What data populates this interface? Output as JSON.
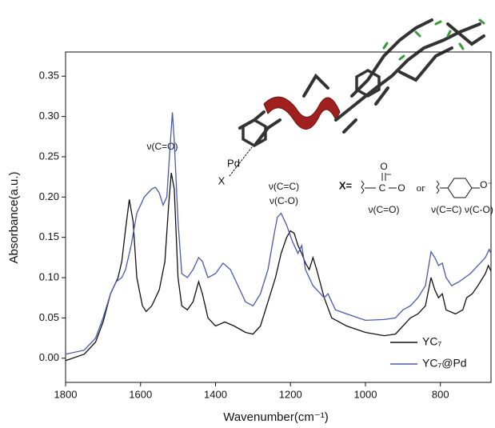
{
  "chart_data": {
    "type": "line",
    "x_label": "Wavenumber(cm⁻¹)",
    "y_label": "Absorbance(a.u.)",
    "xlim": [
      1800,
      665
    ],
    "ylim": [
      -0.03,
      0.38
    ],
    "xticks": [
      1800,
      1600,
      1400,
      1200,
      1000,
      800
    ],
    "yticks": [
      {
        "value": 0,
        "label": "0.00"
      },
      0.05,
      {
        "value": 0.1,
        "label": "0.10"
      },
      0.15,
      {
        "value": 0.2,
        "label": "0.20"
      },
      0.25,
      {
        "value": 0.3,
        "label": "0.30"
      },
      0.35
    ],
    "legend": "lower right",
    "series": [
      {
        "name": "YC₇",
        "color": "#111111",
        "x": [
          1800,
          1750,
          1720,
          1700,
          1680,
          1660,
          1650,
          1640,
          1630,
          1620,
          1610,
          1595,
          1585,
          1570,
          1550,
          1535,
          1525,
          1518,
          1510,
          1500,
          1490,
          1475,
          1460,
          1445,
          1435,
          1420,
          1400,
          1375,
          1350,
          1320,
          1300,
          1280,
          1260,
          1240,
          1225,
          1210,
          1200,
          1190,
          1180,
          1170,
          1160,
          1150,
          1140,
          1130,
          1110,
          1090,
          1050,
          1000,
          950,
          920,
          900,
          880,
          860,
          840,
          825,
          815,
          805,
          795,
          785,
          760,
          740,
          730,
          715,
          700,
          680,
          672,
          665
        ],
        "values": [
          -0.003,
          0.005,
          0.02,
          0.045,
          0.08,
          0.1,
          0.12,
          0.16,
          0.197,
          0.17,
          0.1,
          0.065,
          0.058,
          0.065,
          0.085,
          0.12,
          0.19,
          0.23,
          0.21,
          0.1,
          0.065,
          0.06,
          0.07,
          0.095,
          0.08,
          0.05,
          0.04,
          0.045,
          0.04,
          0.032,
          0.03,
          0.04,
          0.07,
          0.1,
          0.13,
          0.15,
          0.158,
          0.155,
          0.14,
          0.13,
          0.118,
          0.11,
          0.125,
          0.11,
          0.075,
          0.05,
          0.04,
          0.032,
          0.028,
          0.03,
          0.04,
          0.05,
          0.055,
          0.065,
          0.1,
          0.085,
          0.075,
          0.08,
          0.06,
          0.055,
          0.06,
          0.075,
          0.08,
          0.09,
          0.105,
          0.115,
          0.108
        ]
      },
      {
        "name": "YC₇@Pd",
        "color": "#4a5aaa",
        "x": [
          1800,
          1750,
          1720,
          1700,
          1680,
          1665,
          1650,
          1640,
          1625,
          1610,
          1590,
          1570,
          1560,
          1550,
          1540,
          1530,
          1520,
          1515,
          1510,
          1500,
          1490,
          1475,
          1460,
          1445,
          1435,
          1420,
          1400,
          1380,
          1360,
          1340,
          1320,
          1300,
          1280,
          1260,
          1245,
          1235,
          1225,
          1210,
          1195,
          1180,
          1170,
          1160,
          1140,
          1110,
          1100,
          1080,
          1050,
          1000,
          950,
          920,
          900,
          880,
          860,
          840,
          825,
          815,
          805,
          795,
          785,
          770,
          750,
          735,
          720,
          700,
          680,
          670,
          665
        ],
        "values": [
          0.005,
          0.01,
          0.025,
          0.05,
          0.08,
          0.095,
          0.1,
          0.11,
          0.14,
          0.18,
          0.2,
          0.21,
          0.212,
          0.205,
          0.19,
          0.2,
          0.27,
          0.305,
          0.27,
          0.17,
          0.105,
          0.1,
          0.11,
          0.125,
          0.12,
          0.1,
          0.105,
          0.118,
          0.11,
          0.09,
          0.07,
          0.065,
          0.08,
          0.11,
          0.15,
          0.175,
          0.18,
          0.165,
          0.145,
          0.13,
          0.14,
          0.11,
          0.09,
          0.075,
          0.08,
          0.06,
          0.055,
          0.047,
          0.048,
          0.05,
          0.06,
          0.065,
          0.075,
          0.09,
          0.132,
          0.125,
          0.115,
          0.118,
          0.1,
          0.09,
          0.095,
          0.1,
          0.105,
          0.115,
          0.125,
          0.135,
          0.13
        ]
      }
    ],
    "annotations": [
      "ν(C=O)",
      "ν(C=C)",
      "ν(C-O)",
      "Pd",
      "X",
      "X=",
      "or",
      "ν(C=O)",
      "ν(C=C)  ν(C-O)",
      "O",
      "O",
      "−",
      "C",
      "O⁻"
    ]
  }
}
